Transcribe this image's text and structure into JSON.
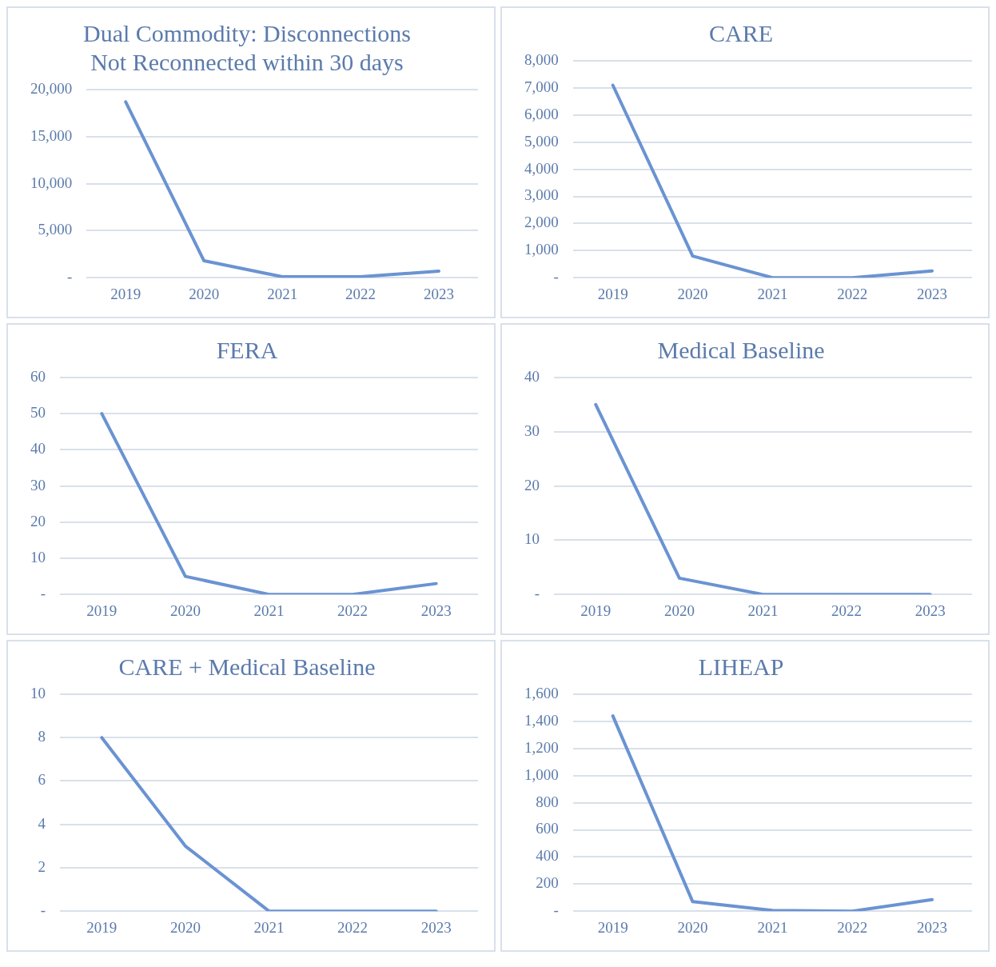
{
  "chart_data": [
    {
      "type": "line",
      "title": "Dual Commodity: Disconnections Not Reconnected within 30 days",
      "categories": [
        "2019",
        "2020",
        "2021",
        "2022",
        "2023"
      ],
      "values": [
        18700,
        1800,
        100,
        100,
        700
      ],
      "color": "#6a93d2",
      "ylim": [
        0,
        20000
      ],
      "yticks": [
        {
          "value": 0,
          "label": "-"
        },
        {
          "value": 5000,
          "label": "5,000"
        },
        {
          "value": 10000,
          "label": "10,000"
        },
        {
          "value": 15000,
          "label": "15,000"
        },
        {
          "value": 20000,
          "label": "20,000"
        }
      ],
      "grid": "y"
    },
    {
      "type": "line",
      "title": "CARE",
      "categories": [
        "2019",
        "2020",
        "2021",
        "2022",
        "2023"
      ],
      "values": [
        7100,
        800,
        0,
        0,
        250
      ],
      "color": "#6a93d2",
      "ylim": [
        0,
        8000
      ],
      "yticks": [
        {
          "value": 0,
          "label": "-"
        },
        {
          "value": 1000,
          "label": "1,000"
        },
        {
          "value": 2000,
          "label": "2,000"
        },
        {
          "value": 3000,
          "label": "3,000"
        },
        {
          "value": 4000,
          "label": "4,000"
        },
        {
          "value": 5000,
          "label": "5,000"
        },
        {
          "value": 6000,
          "label": "6,000"
        },
        {
          "value": 7000,
          "label": "7,000"
        },
        {
          "value": 8000,
          "label": "8,000"
        }
      ],
      "grid": "y"
    },
    {
      "type": "line",
      "title": "FERA",
      "categories": [
        "2019",
        "2020",
        "2021",
        "2022",
        "2023"
      ],
      "values": [
        50,
        5,
        0,
        0,
        3
      ],
      "color": "#6a93d2",
      "ylim": [
        0,
        60
      ],
      "yticks": [
        {
          "value": 0,
          "label": "-"
        },
        10,
        20,
        30,
        40,
        50,
        60
      ],
      "grid": "y"
    },
    {
      "type": "line",
      "title": "Medical Baseline",
      "categories": [
        "2019",
        "2020",
        "2021",
        "2022",
        "2023"
      ],
      "values": [
        35,
        3,
        0,
        0,
        0
      ],
      "color": "#6a93d2",
      "ylim": [
        0,
        40
      ],
      "yticks": [
        {
          "value": 0,
          "label": "-"
        },
        10,
        20,
        30,
        40
      ],
      "grid": "y"
    },
    {
      "type": "line",
      "title": "CARE + Medical Baseline",
      "categories": [
        "2019",
        "2020",
        "2021",
        "2022",
        "2023"
      ],
      "values": [
        8,
        3,
        0,
        0,
        0
      ],
      "color": "#6a93d2",
      "ylim": [
        0,
        10
      ],
      "yticks": [
        {
          "value": 0,
          "label": "-"
        },
        2,
        4,
        6,
        8,
        10
      ],
      "grid": "y"
    },
    {
      "type": "line",
      "title": "LIHEAP",
      "categories": [
        "2019",
        "2020",
        "2021",
        "2022",
        "2023"
      ],
      "values": [
        1440,
        70,
        5,
        0,
        85
      ],
      "color": "#6a93d2",
      "ylim": [
        0,
        1600
      ],
      "yticks": [
        {
          "value": 0,
          "label": "-"
        },
        200,
        400,
        600,
        800,
        {
          "value": 1000,
          "label": "1,000"
        },
        {
          "value": 1200,
          "label": "1,200"
        },
        {
          "value": 1400,
          "label": "1,400"
        },
        {
          "value": 1600,
          "label": "1,600"
        }
      ],
      "grid": "y"
    }
  ]
}
